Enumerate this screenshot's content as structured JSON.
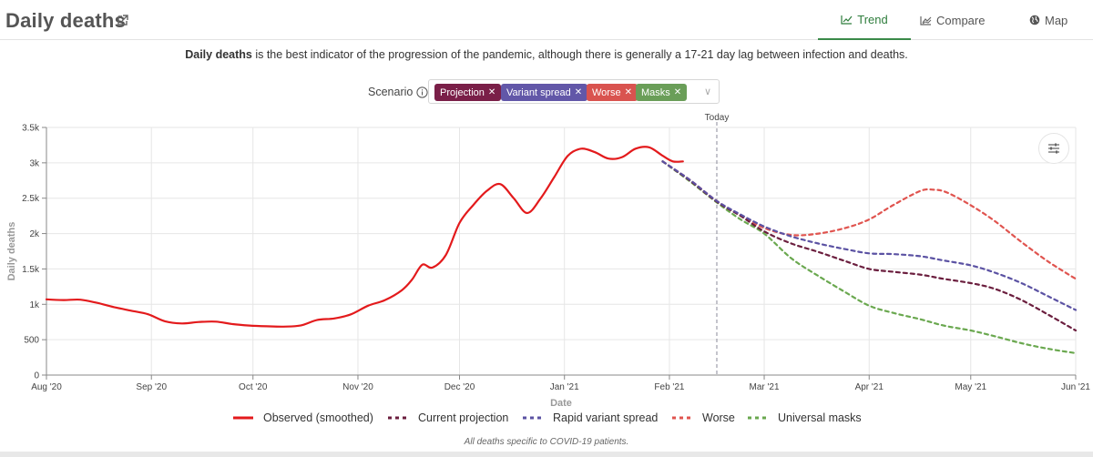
{
  "header": {
    "title": "Daily deaths",
    "tabs": [
      {
        "label": "Trend",
        "icon": "line-chart-icon"
      },
      {
        "label": "Compare",
        "icon": "compare-chart-icon"
      },
      {
        "label": "Map",
        "icon": "globe-icon"
      }
    ]
  },
  "description": {
    "bold": "Daily deaths",
    "rest": " is the best indicator of the progression of the pandemic, although there is generally a 17-21 day lag between infection and deaths."
  },
  "scenario": {
    "label": "Scenario",
    "chips": [
      {
        "label": "Projection",
        "color": "#7a1f48"
      },
      {
        "label": "Variant spread",
        "color": "#6257a8"
      },
      {
        "label": "Worse",
        "color": "#d9534f"
      },
      {
        "label": "Masks",
        "color": "#6a9e58"
      }
    ]
  },
  "chart_data": {
    "type": "line",
    "title": "Daily deaths",
    "xlabel": "Date",
    "ylabel": "Daily deaths",
    "ylim": [
      0,
      3500
    ],
    "yticks": [
      0,
      500,
      1000,
      1500,
      2000,
      2500,
      3000,
      3500
    ],
    "ytick_labels": [
      "0",
      "500",
      "1k",
      "1.5k",
      "2k",
      "2.5k",
      "3k",
      "3.5k"
    ],
    "x_months": [
      "Aug '20",
      "Sep '20",
      "Oct '20",
      "Nov '20",
      "Dec '20",
      "Jan '21",
      "Feb '21",
      "Mar '21",
      "Apr '21",
      "May '21",
      "Jun '21"
    ],
    "x_unit": "days since 2020-08-01",
    "x_month_days": [
      0,
      31,
      61,
      92,
      122,
      153,
      184,
      212,
      243,
      273,
      304
    ],
    "xlim": [
      0,
      304
    ],
    "today": {
      "label": "Today",
      "day": 198
    },
    "series": [
      {
        "name": "Observed (smoothed)",
        "color": "#e31a1c",
        "dash": "solid",
        "x": [
          0,
          5,
          10,
          15,
          20,
          25,
          30,
          35,
          40,
          45,
          50,
          55,
          60,
          65,
          70,
          75,
          80,
          85,
          90,
          95,
          100,
          105,
          108,
          111,
          114,
          118,
          122,
          126,
          130,
          134,
          138,
          142,
          146,
          150,
          154,
          158,
          162,
          166,
          170,
          174,
          178,
          182,
          185,
          188
        ],
        "values": [
          1070,
          1060,
          1065,
          1020,
          960,
          910,
          860,
          760,
          730,
          750,
          755,
          720,
          700,
          690,
          685,
          700,
          780,
          800,
          860,
          980,
          1060,
          1200,
          1350,
          1560,
          1520,
          1700,
          2150,
          2400,
          2600,
          2700,
          2500,
          2290,
          2500,
          2800,
          3100,
          3200,
          3150,
          3060,
          3080,
          3200,
          3220,
          3100,
          3020,
          3020
        ]
      },
      {
        "name": "Current projection",
        "color": "#6b1e3e",
        "dash": "dashed",
        "x": [
          182,
          190,
          198,
          205,
          212,
          220,
          228,
          236,
          243,
          250,
          258,
          265,
          273,
          280,
          288,
          296,
          304
        ],
        "values": [
          3020,
          2750,
          2450,
          2250,
          2030,
          1860,
          1740,
          1610,
          1500,
          1460,
          1420,
          1360,
          1300,
          1220,
          1060,
          850,
          630
        ]
      },
      {
        "name": "Rapid variant spread",
        "color": "#5b52a3",
        "dash": "dashed",
        "x": [
          182,
          190,
          198,
          205,
          212,
          220,
          228,
          236,
          243,
          250,
          258,
          265,
          273,
          280,
          288,
          296,
          304
        ],
        "values": [
          3020,
          2760,
          2460,
          2270,
          2100,
          1960,
          1860,
          1780,
          1720,
          1710,
          1680,
          1620,
          1550,
          1450,
          1300,
          1110,
          920
        ]
      },
      {
        "name": "Worse",
        "color": "#e0544f",
        "dash": "dashed",
        "x": [
          182,
          190,
          198,
          205,
          212,
          220,
          228,
          236,
          243,
          250,
          258,
          262,
          266,
          273,
          280,
          288,
          296,
          304
        ],
        "values": [
          3020,
          2760,
          2460,
          2260,
          2080,
          1980,
          2000,
          2080,
          2200,
          2400,
          2600,
          2620,
          2580,
          2400,
          2180,
          1880,
          1600,
          1360
        ]
      },
      {
        "name": "Universal masks",
        "color": "#6aa84f",
        "dash": "dashed",
        "x": [
          182,
          190,
          198,
          205,
          212,
          220,
          228,
          236,
          243,
          250,
          258,
          265,
          273,
          280,
          288,
          296,
          304
        ],
        "values": [
          3020,
          2740,
          2440,
          2200,
          2000,
          1650,
          1400,
          1170,
          980,
          880,
          790,
          700,
          630,
          550,
          450,
          370,
          310
        ]
      }
    ]
  },
  "footnote": "All deaths specific to COVID-19 patients."
}
